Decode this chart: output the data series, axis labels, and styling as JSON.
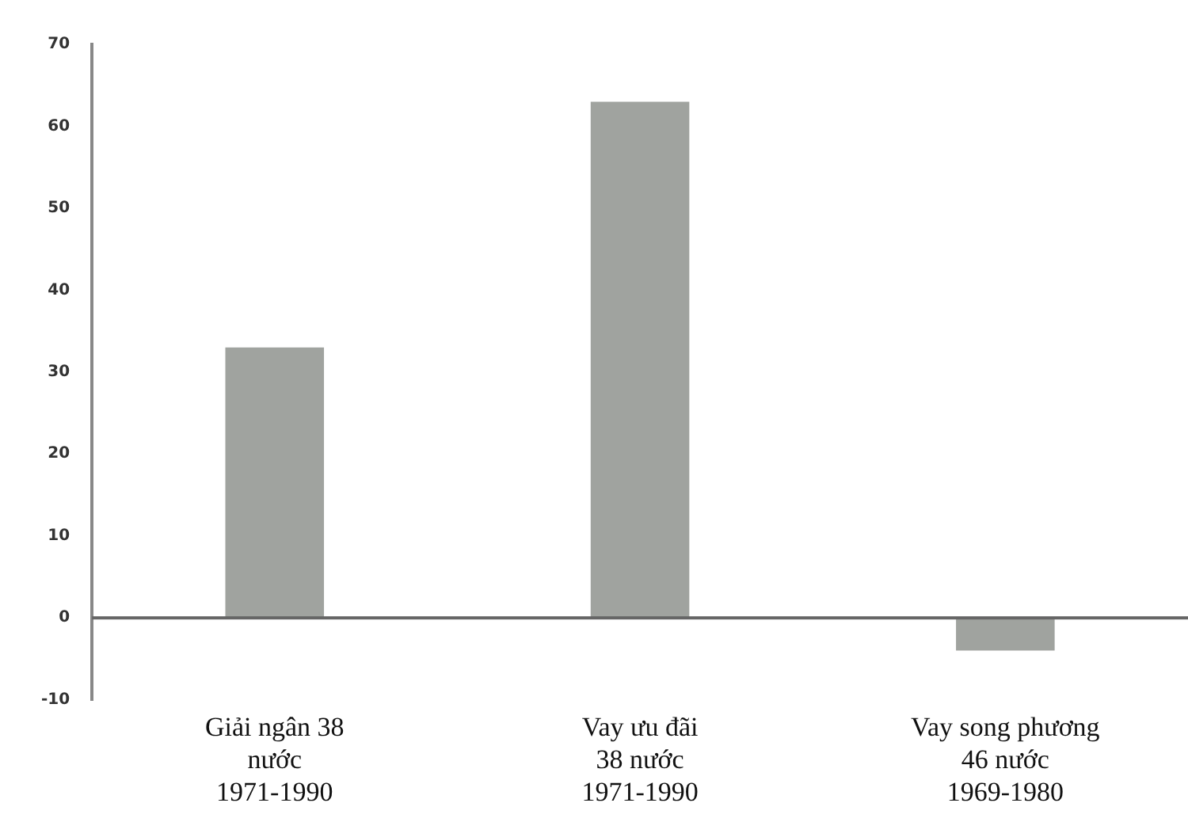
{
  "chart_data": {
    "type": "bar",
    "categories": [
      "Giải ngân 38\nnước\n1971-1990",
      "Vay ưu đãi\n38 nước\n1971-1990",
      "Vay song phương\n46 nước\n1969-1980"
    ],
    "values": [
      33,
      63,
      -4
    ],
    "color": "#a0a39f",
    "ylim": [
      -10,
      70
    ],
    "yticks": [
      -10,
      0,
      10,
      20,
      30,
      40,
      50,
      60,
      70
    ],
    "grid": false,
    "ref_lines": [
      {
        "axis": "y",
        "value": 0,
        "color": "#666666"
      }
    ]
  }
}
